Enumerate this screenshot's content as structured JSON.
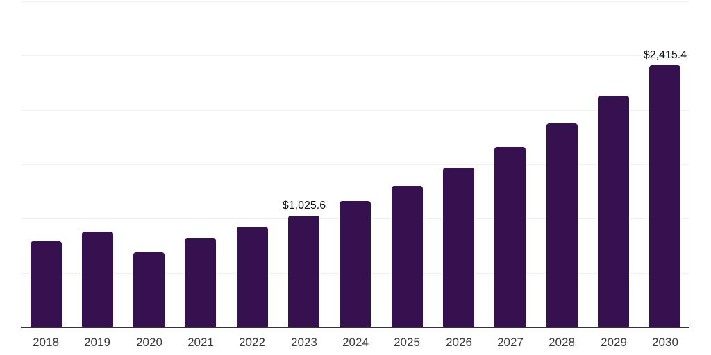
{
  "chart_data": {
    "type": "bar",
    "title": "",
    "xlabel": "",
    "ylabel": "",
    "categories": [
      "2018",
      "2019",
      "2020",
      "2021",
      "2022",
      "2023",
      "2024",
      "2025",
      "2026",
      "2027",
      "2028",
      "2029",
      "2030"
    ],
    "values": [
      790,
      880,
      690,
      825,
      925,
      1025.6,
      1160,
      1305,
      1470,
      1660,
      1875,
      2130,
      2415.4
    ],
    "data_labels": [
      "",
      "",
      "",
      "",
      "",
      "$1,025.6",
      "",
      "",
      "",
      "",
      "",
      "",
      "$2,415.4"
    ],
    "ylim": [
      0,
      3000
    ],
    "gridline_step": 500,
    "grid": "horizontal-only",
    "legend": "none",
    "colors": {
      "bar": "#351150",
      "gridline": "#f1f1f1",
      "axis_line": "#333333",
      "value_label": "#111111",
      "tick_label": "#3a3a3a",
      "background": "#ffffff"
    }
  }
}
